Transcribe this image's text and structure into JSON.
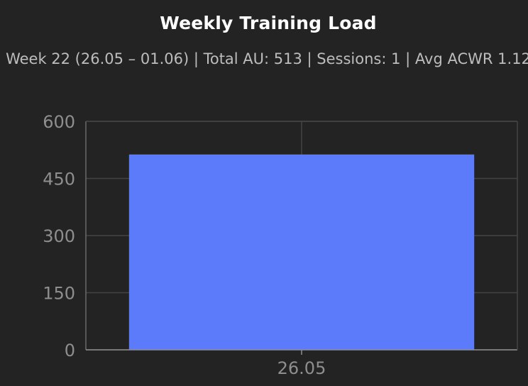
{
  "chart_data": {
    "type": "bar",
    "title": "Weekly Training Load",
    "subtitle": "Week 22 (26.05 – 01.06)  |  Total AU: 513  |  Sessions: 1  |  Avg ACWR 1.12",
    "categories": [
      "26.05"
    ],
    "values": [
      513
    ],
    "ylim": [
      0,
      600
    ],
    "yticks": [
      "0",
      "150",
      "300",
      "450",
      "600"
    ],
    "ytick_values": [
      0,
      150,
      300,
      450,
      600
    ],
    "grid": true,
    "bar_color": "#5b7bfa"
  }
}
